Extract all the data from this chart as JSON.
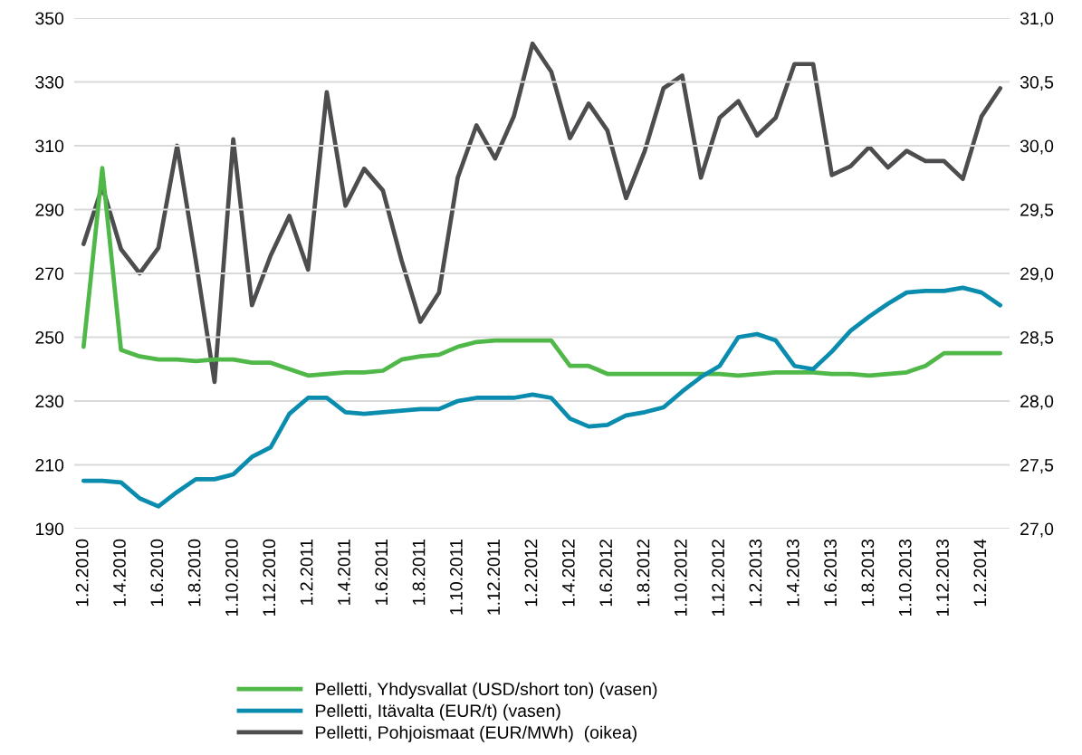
{
  "chart_data": {
    "type": "line",
    "categories": [
      "1.2.2010",
      null,
      "1.4.2010",
      null,
      "1.6.2010",
      null,
      "1.8.2010",
      null,
      "1.10.2010",
      null,
      "1.12.2010",
      null,
      "1.2.2011",
      null,
      "1.4.2011",
      null,
      "1.6.2011",
      null,
      "1.8.2011",
      null,
      "1.10.2011",
      null,
      "1.12.2011",
      null,
      "1.2.2012",
      null,
      "1.4.2012",
      null,
      "1.6.2012",
      null,
      "1.8.2012",
      null,
      "1.10.2012",
      null,
      "1.12.2012",
      null,
      "1.2.2013",
      null,
      "1.4.2013",
      null,
      "1.6.2013",
      null,
      "1.8.2013",
      null,
      "1.10.2013",
      null,
      "1.12.2013",
      null,
      "1.2.2014",
      null
    ],
    "series": [
      {
        "name": "Pelletti, Yhdysvallat (USD/short ton) (vasen)",
        "color": "#50b848",
        "values": [
          247,
          303,
          246,
          244,
          243,
          243,
          242.5,
          243,
          243,
          242,
          242,
          240,
          238,
          238.5,
          239,
          239,
          239.5,
          243,
          244,
          244.5,
          247,
          248.5,
          249,
          249,
          249,
          249,
          241,
          241,
          238.5,
          238.5,
          238.5,
          238.5,
          238.5,
          238.5,
          238.5,
          238,
          238.5,
          239,
          239,
          239,
          238.5,
          238.5,
          238,
          238.5,
          239,
          241,
          245,
          245,
          245,
          245
        ]
      },
      {
        "name": "Pelletti, Itävalta (EUR/t) (vasen)",
        "color": "#0a8caf",
        "values": [
          205,
          205,
          204.5,
          199.5,
          197,
          201.5,
          205.5,
          205.5,
          207,
          212.5,
          215.5,
          226,
          231,
          231,
          226.5,
          226,
          226.5,
          227,
          227.5,
          227.5,
          230,
          231,
          231,
          231,
          232,
          231,
          224.5,
          222,
          222.5,
          225.5,
          226.5,
          228,
          233,
          237.5,
          241,
          250,
          251,
          249,
          241,
          240,
          245.5,
          252,
          256.5,
          260.5,
          264,
          264.5,
          264.5,
          265.5,
          264,
          260
        ]
      },
      {
        "name": "Pelletti, Pohjoismaat (EUR/MWh)  (oikea)",
        "color": "#4d4d4f",
        "axis": "y2",
        "values": [
          29.23,
          29.68,
          29.19,
          29.0,
          29.2,
          30.0,
          29.1,
          28.15,
          30.05,
          28.75,
          29.14,
          29.45,
          29.03,
          30.42,
          29.53,
          29.82,
          29.65,
          29.1,
          28.62,
          28.85,
          29.75,
          30.16,
          29.9,
          30.23,
          30.8,
          30.58,
          30.06,
          30.33,
          30.12,
          29.59,
          29.96,
          30.45,
          30.55,
          29.75,
          30.22,
          30.35,
          30.08,
          30.22,
          30.64,
          30.64,
          29.77,
          29.84,
          29.99,
          29.83,
          29.96,
          29.88,
          29.88,
          29.74,
          30.23,
          30.45
        ]
      }
    ],
    "ylim": [
      190,
      350
    ],
    "yticks": [
      190,
      210,
      230,
      250,
      270,
      290,
      310,
      330,
      350
    ],
    "y2lim": [
      27.0,
      31.0
    ],
    "y2ticks": [
      {
        "value": 27.0,
        "label": "27,0"
      },
      {
        "value": 27.5,
        "label": "27,5"
      },
      {
        "value": 28.0,
        "label": "28,0"
      },
      {
        "value": 28.5,
        "label": "28,5"
      },
      {
        "value": 29.0,
        "label": "29,0"
      },
      {
        "value": 29.5,
        "label": "29,5"
      },
      {
        "value": 30.0,
        "label": "30,0"
      },
      {
        "value": 30.5,
        "label": "30,5"
      },
      {
        "value": 31.0,
        "label": "31,0"
      }
    ],
    "grid": "y",
    "legend": "bottom",
    "marker": "none",
    "line_style": "solid"
  }
}
